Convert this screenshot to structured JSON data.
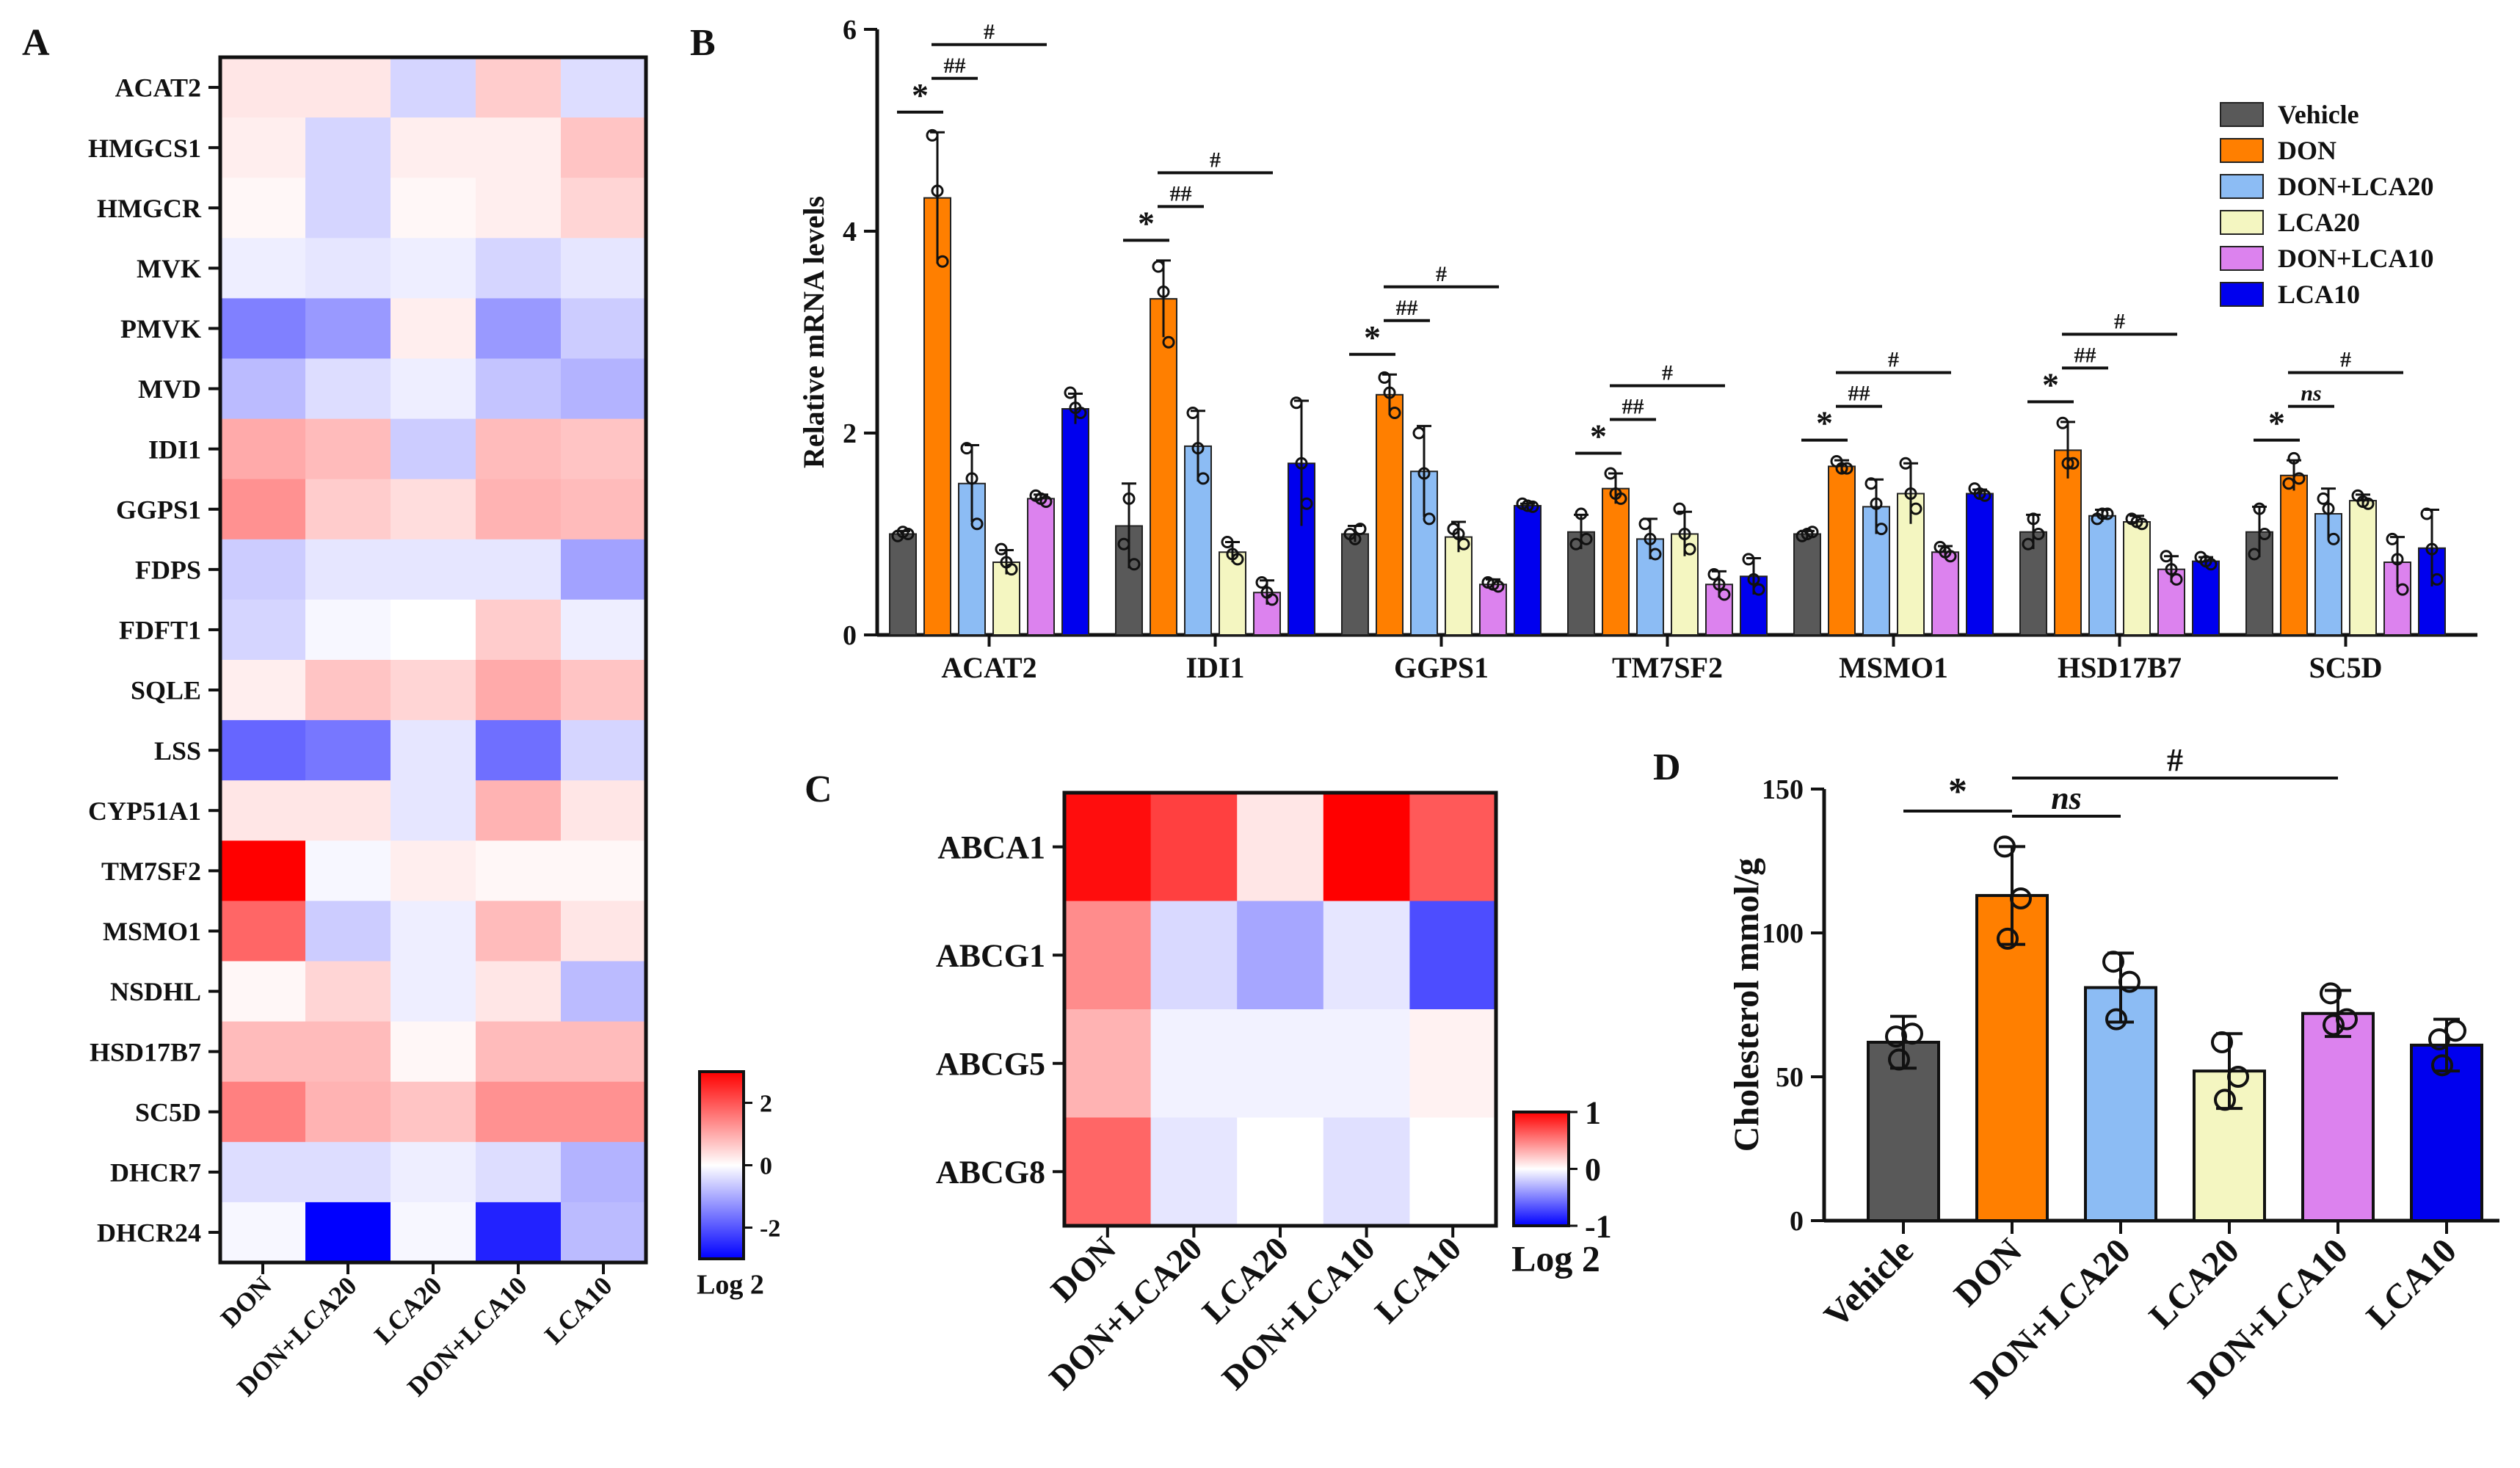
{
  "panels": {
    "A": {
      "label": "A"
    },
    "B": {
      "label": "B"
    },
    "C": {
      "label": "C"
    },
    "D": {
      "label": "D"
    }
  },
  "colors": {
    "Vehicle": "#595959",
    "DON": "#ff7f00",
    "DON+LCA20": "#8cbcf4",
    "LCA20": "#f4f6c1",
    "DON+LCA10": "#dc82ee",
    "LCA10": "#0000ee",
    "heat_high": "#ff0000",
    "heat_mid": "#ffffff",
    "heat_low": "#0000ff"
  },
  "chart_data": [
    {
      "id": "A",
      "type": "heatmap",
      "columns": [
        "DON",
        "DON+LCA20",
        "LCA20",
        "DON+LCA10",
        "LCA10"
      ],
      "rows": [
        "ACAT2",
        "HMGCS1",
        "HMGCR",
        "MVK",
        "PMVK",
        "MVD",
        "IDI1",
        "GGPS1",
        "FDPS",
        "FDFT1",
        "SQLE",
        "LSS",
        "CYP51A1",
        "TM7SF2",
        "MSMO1",
        "NSDHL",
        "HSD17B7",
        "SC5D",
        "DHCR7",
        "DHCR24"
      ],
      "values": [
        [
          0.3,
          0.3,
          -0.5,
          0.6,
          -0.4
        ],
        [
          0.2,
          -0.5,
          0.2,
          0.2,
          0.7
        ],
        [
          0.1,
          -0.5,
          0.1,
          0.2,
          0.5
        ],
        [
          -0.2,
          -0.3,
          -0.2,
          -0.5,
          -0.3
        ],
        [
          -1.5,
          -1.2,
          0.2,
          -1.2,
          -0.6
        ],
        [
          -0.8,
          -0.4,
          -0.2,
          -0.7,
          -0.9
        ],
        [
          1.0,
          0.8,
          -0.6,
          0.8,
          0.7
        ],
        [
          1.3,
          0.6,
          0.4,
          0.9,
          0.8
        ],
        [
          -0.6,
          -0.3,
          -0.3,
          -0.3,
          -1.1
        ],
        [
          -0.5,
          -0.1,
          0.0,
          0.6,
          -0.2
        ],
        [
          0.2,
          0.7,
          0.5,
          1.0,
          0.7
        ],
        [
          -1.8,
          -1.6,
          -0.3,
          -1.7,
          -0.5
        ],
        [
          0.3,
          0.3,
          -0.3,
          0.9,
          0.3
        ],
        [
          3.0,
          -0.1,
          0.2,
          0.1,
          0.1
        ],
        [
          1.8,
          -0.6,
          -0.2,
          0.8,
          0.3
        ],
        [
          0.1,
          0.5,
          -0.2,
          0.3,
          -0.8
        ],
        [
          0.8,
          0.8,
          0.1,
          0.8,
          0.8
        ],
        [
          1.5,
          0.9,
          0.7,
          1.3,
          1.3
        ],
        [
          -0.4,
          -0.4,
          -0.2,
          -0.4,
          -0.9
        ],
        [
          -0.1,
          -3.0,
          -0.1,
          -2.6,
          -0.8
        ]
      ],
      "colorbar": {
        "ticks": [
          "2",
          "0",
          "-2"
        ],
        "tick_values": [
          2,
          0,
          -2
        ],
        "range": [
          -3,
          3
        ],
        "label": "Log 2"
      }
    },
    {
      "id": "B",
      "type": "bar",
      "ylabel": "Relative mRNA levels",
      "ylim": [
        0,
        6
      ],
      "yticks": [
        "0",
        "2",
        "4",
        "6"
      ],
      "ytick_values": [
        0,
        2,
        4,
        6
      ],
      "categories": [
        "ACAT2",
        "IDI1",
        "GGPS1",
        "TM7SF2",
        "MSMO1",
        "HSD17B7",
        "SC5D"
      ],
      "series": [
        {
          "name": "Vehicle",
          "values": [
            1.0,
            1.08,
            1.0,
            1.02,
            1.0,
            1.02,
            1.02
          ],
          "err": [
            0.03,
            0.42,
            0.08,
            0.17,
            0.03,
            0.17,
            0.25
          ],
          "points": [
            [
              0.98,
              1.02,
              1.0
            ],
            [
              0.9,
              1.35,
              0.7
            ],
            [
              1.0,
              0.95,
              1.05
            ],
            [
              0.9,
              1.2,
              0.95
            ],
            [
              0.98,
              1.0,
              1.02
            ],
            [
              0.9,
              1.15,
              1.0
            ],
            [
              0.8,
              1.25,
              1.0
            ]
          ]
        },
        {
          "name": "DON",
          "values": [
            4.33,
            3.33,
            2.38,
            1.45,
            1.67,
            1.83,
            1.58
          ],
          "err": [
            0.65,
            0.38,
            0.2,
            0.15,
            0.06,
            0.28,
            0.15
          ],
          "points": [
            [
              4.95,
              4.4,
              3.7
            ],
            [
              3.65,
              3.4,
              2.9
            ],
            [
              2.55,
              2.4,
              2.2
            ],
            [
              1.6,
              1.4,
              1.35
            ],
            [
              1.72,
              1.65,
              1.65
            ],
            [
              2.1,
              1.7,
              1.7
            ],
            [
              1.5,
              1.75,
              1.55
            ]
          ]
        },
        {
          "name": "DON+LCA20",
          "values": [
            1.5,
            1.87,
            1.62,
            0.95,
            1.27,
            1.18,
            1.2
          ],
          "err": [
            0.38,
            0.35,
            0.45,
            0.2,
            0.27,
            0.06,
            0.25
          ],
          "points": [
            [
              1.85,
              1.55,
              1.1
            ],
            [
              2.2,
              1.85,
              1.55
            ],
            [
              2.0,
              1.6,
              1.15
            ],
            [
              1.1,
              0.95,
              0.8
            ],
            [
              1.5,
              1.3,
              1.05
            ],
            [
              1.15,
              1.2,
              1.2
            ],
            [
              1.35,
              1.25,
              0.95
            ]
          ]
        },
        {
          "name": "LCA20",
          "values": [
            0.72,
            0.82,
            0.97,
            1.0,
            1.4,
            1.12,
            1.33
          ],
          "err": [
            0.12,
            0.1,
            0.15,
            0.22,
            0.3,
            0.06,
            0.06
          ],
          "points": [
            [
              0.85,
              0.72,
              0.65
            ],
            [
              0.92,
              0.8,
              0.75
            ],
            [
              1.05,
              1.0,
              0.9
            ],
            [
              1.25,
              1.0,
              0.85
            ],
            [
              1.7,
              1.4,
              1.25
            ],
            [
              1.15,
              1.12,
              1.1
            ],
            [
              1.38,
              1.32,
              1.3
            ]
          ]
        },
        {
          "name": "DON+LCA10",
          "values": [
            1.35,
            0.42,
            0.5,
            0.5,
            0.82,
            0.65,
            0.72
          ],
          "err": [
            0.04,
            0.12,
            0.05,
            0.13,
            0.06,
            0.13,
            0.25
          ],
          "points": [
            [
              1.38,
              1.35,
              1.32
            ],
            [
              0.52,
              0.42,
              0.35
            ],
            [
              0.52,
              0.5,
              0.48
            ],
            [
              0.6,
              0.5,
              0.4
            ],
            [
              0.87,
              0.82,
              0.78
            ],
            [
              0.78,
              0.65,
              0.55
            ],
            [
              0.95,
              0.75,
              0.45
            ]
          ]
        },
        {
          "name": "LCA10",
          "values": [
            2.24,
            1.7,
            1.28,
            0.58,
            1.4,
            0.73,
            0.86
          ],
          "err": [
            0.15,
            0.62,
            0.02,
            0.18,
            0.04,
            0.04,
            0.38
          ],
          "points": [
            [
              2.4,
              2.25,
              2.2
            ],
            [
              2.3,
              1.7,
              1.3
            ],
            [
              1.3,
              1.28,
              1.27
            ],
            [
              0.75,
              0.55,
              0.45
            ],
            [
              1.45,
              1.4,
              1.38
            ],
            [
              0.77,
              0.73,
              0.7
            ],
            [
              1.2,
              0.85,
              0.55
            ]
          ]
        }
      ],
      "significance": [
        {
          "from": 0,
          "to": 1,
          "label": "*"
        },
        {
          "from": 1,
          "to": 2,
          "label": "##"
        },
        {
          "from": 1,
          "to": 4,
          "label": "#"
        }
      ],
      "significance_sc5d_mid": "ns",
      "legend_position": "top-right"
    },
    {
      "id": "C",
      "type": "heatmap",
      "columns": [
        "DON",
        "DON+LCA20",
        "LCA20",
        "DON+LCA10",
        "LCA10"
      ],
      "rows": [
        "ABCA1",
        "ABCG1",
        "ABCG5",
        "ABCG8"
      ],
      "values": [
        [
          0.95,
          0.75,
          0.1,
          1.0,
          0.65
        ],
        [
          0.45,
          -0.15,
          -0.35,
          -0.1,
          -0.7
        ],
        [
          0.3,
          -0.05,
          -0.05,
          -0.05,
          0.05
        ],
        [
          0.6,
          -0.1,
          0.0,
          -0.12,
          0.0
        ]
      ],
      "colorbar": {
        "ticks": [
          "1",
          "0",
          "-1"
        ],
        "tick_values": [
          1,
          0,
          -1
        ],
        "range": [
          -1,
          1
        ],
        "label": "Log 2"
      }
    },
    {
      "id": "D",
      "type": "bar",
      "ylabel": "Cholesterol mmol/g",
      "ylim": [
        0,
        150
      ],
      "yticks": [
        "0",
        "50",
        "100",
        "150"
      ],
      "ytick_values": [
        0,
        50,
        100,
        150
      ],
      "categories": [
        "Vehicle",
        "DON",
        "DON+LCA20",
        "LCA20",
        "DON+LCA10",
        "LCA10"
      ],
      "values": [
        62,
        113,
        81,
        52,
        72,
        61
      ],
      "err": [
        9,
        17,
        12,
        13,
        8,
        9
      ],
      "points": [
        [
          64,
          56,
          65
        ],
        [
          130,
          98,
          112
        ],
        [
          90,
          70,
          83
        ],
        [
          62,
          42,
          50
        ],
        [
          79,
          68,
          70
        ],
        [
          63,
          54,
          66
        ]
      ],
      "significance": [
        {
          "from": 0,
          "to": 1,
          "label": "*"
        },
        {
          "from": 1,
          "to": 2,
          "label": "ns"
        },
        {
          "from": 1,
          "to": 4,
          "label": "#"
        }
      ]
    }
  ]
}
